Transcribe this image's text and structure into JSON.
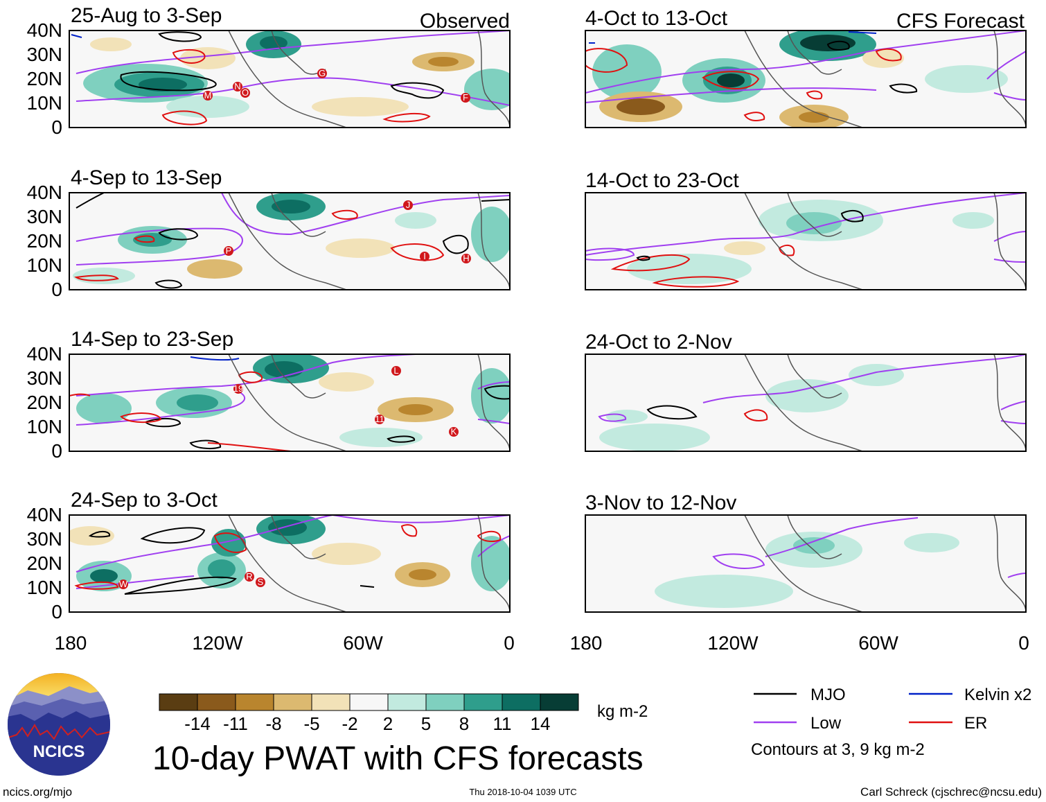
{
  "title": "10-day PWAT with CFS forecasts",
  "observed_label": "Observed",
  "forecast_label": "CFS Forecast",
  "panels": {
    "observed": [
      {
        "period": "25-Aug to 3-Sep",
        "storms": [
          "M",
          "N",
          "O",
          "G",
          "F"
        ]
      },
      {
        "period": "4-Sep to 13-Sep",
        "storms": [
          "J",
          "P",
          "I",
          "H"
        ]
      },
      {
        "period": "14-Sep to 23-Sep",
        "storms": [
          "L",
          "19",
          "11",
          "K"
        ]
      },
      {
        "period": "24-Sep to 3-Oct",
        "storms": [
          "W",
          "R",
          "S"
        ]
      }
    ],
    "forecast": [
      {
        "period": "4-Oct to 13-Oct"
      },
      {
        "period": "14-Oct to 23-Oct"
      },
      {
        "period": "24-Oct to 2-Nov"
      },
      {
        "period": "3-Nov to 12-Nov"
      }
    ]
  },
  "axes": {
    "y_ticks": [
      "40N",
      "30N",
      "20N",
      "10N",
      "0"
    ],
    "x_ticks": [
      "180",
      "120W",
      "60W",
      "0"
    ]
  },
  "colorbar": {
    "ticks": [
      "-14",
      "-11",
      "-8",
      "-5",
      "-2",
      "2",
      "5",
      "8",
      "11",
      "14"
    ],
    "units": "kg m-2",
    "colors": [
      "#5a3d12",
      "#8a5a1c",
      "#b9852e",
      "#dcb970",
      "#f2e2b8",
      "#f7f7f7",
      "#c2eadf",
      "#7fd0bf",
      "#2f9e8c",
      "#0d6e62",
      "#073d35"
    ]
  },
  "legend": {
    "items": [
      {
        "label": "MJO",
        "color": "#000000"
      },
      {
        "label": "Kelvin x2",
        "color": "#0021c8"
      },
      {
        "label": "Low",
        "color": "#a03ff0"
      },
      {
        "label": "ER",
        "color": "#e01010"
      }
    ],
    "note": "Contours at 3, 9 kg m-2"
  },
  "footer": {
    "left": "ncics.org/mjo",
    "center": "Thu 2018-10-04 1039 UTC",
    "right": "Carl Schreck (cjschrec@ncsu.edu)"
  },
  "logo": {
    "text": "NCICS"
  }
}
